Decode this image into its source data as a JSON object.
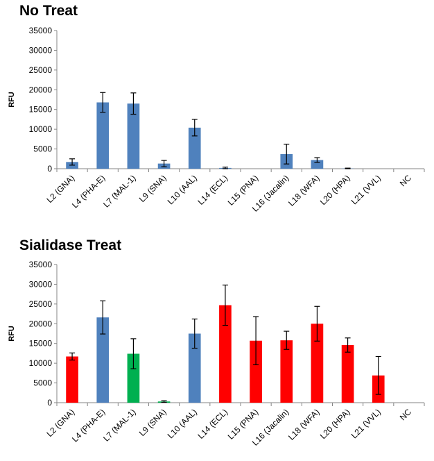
{
  "colors": {
    "blue": "#4F81BD",
    "red": "#FF0000",
    "green": "#00B050",
    "axis": "#868686",
    "error_bar": "#000000"
  },
  "chart_data": [
    {
      "type": "bar",
      "title": "No Treat",
      "ylabel": "RFU",
      "xlabel": "",
      "ylim": [
        0,
        35000
      ],
      "yticks": [
        0,
        5000,
        10000,
        15000,
        20000,
        25000,
        30000,
        35000
      ],
      "grid": false,
      "legend": "none",
      "categories": [
        "L2 (GNA)",
        "L4 (PHA-E)",
        "L7 (MAL-1)",
        "L9 (SNA)",
        "L10 (AAL)",
        "L14 (ECL)",
        "L15 (PNA)",
        "L16 (Jacalin)",
        "L18 (WFA)",
        "L20 (HPA)",
        "L21 (VVL)",
        "NC"
      ],
      "values": [
        1700,
        16800,
        16500,
        1300,
        10400,
        200,
        0,
        3700,
        2200,
        50,
        0,
        0
      ],
      "errors": [
        800,
        2500,
        2700,
        800,
        2100,
        200,
        0,
        2500,
        600,
        100,
        0,
        0
      ],
      "bar_colors": [
        "blue",
        "blue",
        "blue",
        "blue",
        "blue",
        "blue",
        "blue",
        "blue",
        "blue",
        "blue",
        "blue",
        "blue"
      ]
    },
    {
      "type": "bar",
      "title": "Sialidase Treat",
      "ylabel": "RFU",
      "xlabel": "",
      "ylim": [
        0,
        35000
      ],
      "yticks": [
        0,
        5000,
        10000,
        15000,
        20000,
        25000,
        30000,
        35000
      ],
      "grid": false,
      "legend": "none",
      "categories": [
        "L2 (GNA)",
        "L4 (PHA-E)",
        "L7 (MAL-1)",
        "L9 (SNA)",
        "L10 (AAL)",
        "L14 (ECL)",
        "L15 (PNA)",
        "L16 (Jacalin)",
        "L18 (WFA)",
        "L20 (HPA)",
        "L21 (VVL)",
        "NC"
      ],
      "values": [
        11700,
        21600,
        12400,
        300,
        17500,
        24700,
        15700,
        15800,
        20000,
        14600,
        6900,
        0
      ],
      "errors": [
        900,
        4200,
        3800,
        200,
        3700,
        5100,
        6100,
        2300,
        4400,
        1800,
        4800,
        0
      ],
      "bar_colors": [
        "red",
        "blue",
        "green",
        "green",
        "blue",
        "red",
        "red",
        "red",
        "red",
        "red",
        "red",
        "red"
      ]
    }
  ]
}
